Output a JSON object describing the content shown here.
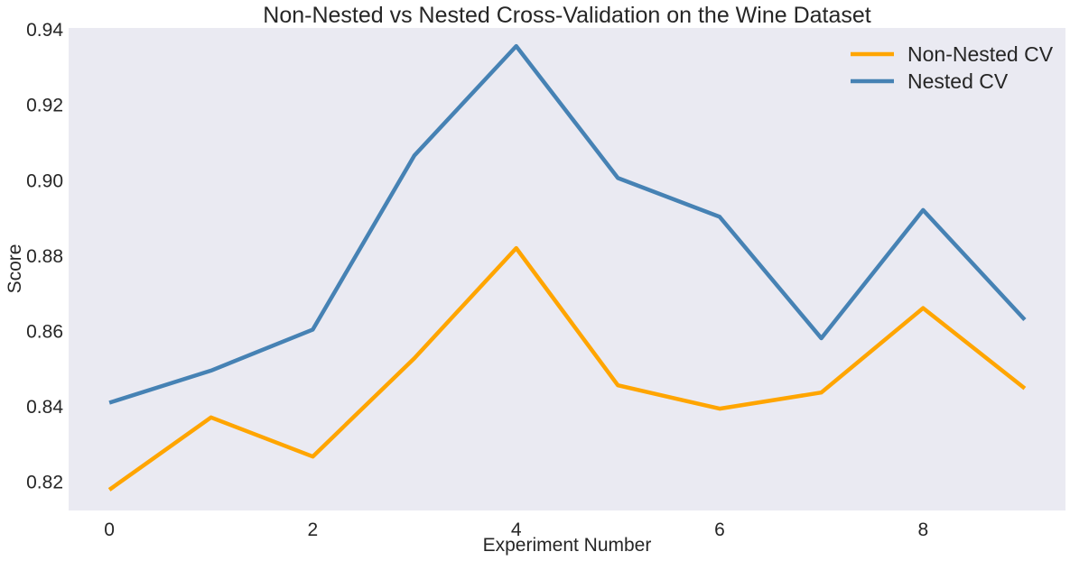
{
  "chart_data": {
    "type": "line",
    "title": "Non-Nested vs Nested Cross-Validation on the Wine Dataset",
    "xlabel": "Experiment Number",
    "ylabel": "Score",
    "x": [
      0,
      1,
      2,
      3,
      4,
      5,
      6,
      7,
      8,
      9
    ],
    "xlim": [
      -0.4,
      9.4
    ],
    "ylim": [
      0.8125,
      0.9405
    ],
    "xticks": [
      0,
      2,
      4,
      6,
      8
    ],
    "xtick_labels": [
      "0",
      "2",
      "4",
      "6",
      "8"
    ],
    "yticks": [
      0.82,
      0.84,
      0.86,
      0.88,
      0.9,
      0.92,
      0.94
    ],
    "ytick_labels": [
      "0.82",
      "0.84",
      "0.86",
      "0.88",
      "0.90",
      "0.92",
      "0.94"
    ],
    "grid": false,
    "legend": "top-right",
    "plot_background": "#eaeaf2",
    "series": [
      {
        "name": "Non-Nested CV",
        "color": "#ffa500",
        "values": [
          0.818,
          0.8372,
          0.8268,
          0.8529,
          0.8821,
          0.8457,
          0.8395,
          0.8438,
          0.8662,
          0.8449
        ]
      },
      {
        "name": "Nested CV",
        "color": "#4682b4",
        "values": [
          0.8411,
          0.8496,
          0.8605,
          0.9067,
          0.9357,
          0.9007,
          0.8904,
          0.8582,
          0.8922,
          0.8631
        ]
      }
    ]
  }
}
